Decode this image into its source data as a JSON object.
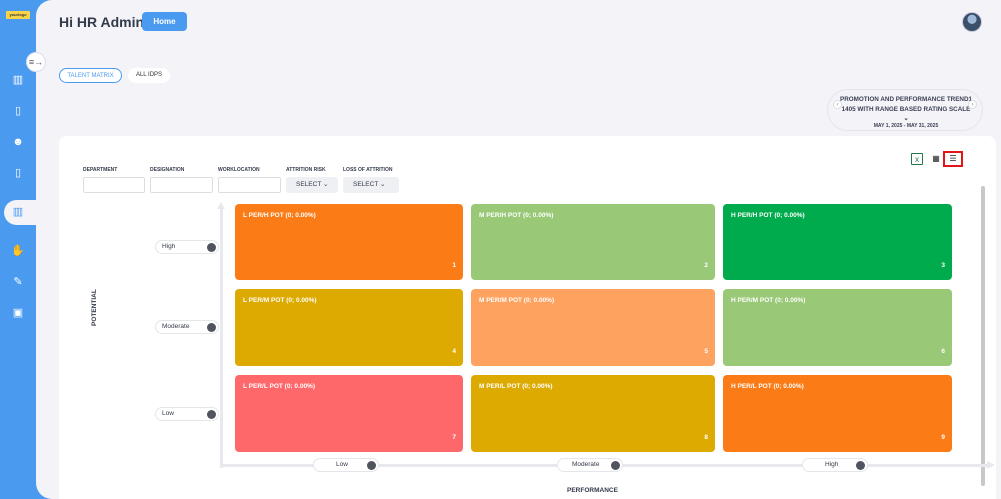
{
  "sidebar": {
    "logo_text": "yourlogo",
    "items": [
      {
        "icon": "bar-chart-icon",
        "glyph": "▥"
      },
      {
        "icon": "book-icon",
        "glyph": "▯"
      },
      {
        "icon": "users-icon",
        "glyph": "☻"
      },
      {
        "icon": "book-open-icon",
        "glyph": "▯"
      },
      {
        "icon": "analytics-icon",
        "glyph": "▥"
      },
      {
        "icon": "handshake-icon",
        "glyph": "✋"
      },
      {
        "icon": "document-edit-icon",
        "glyph": "✎"
      },
      {
        "icon": "calendar-icon",
        "glyph": "▣"
      }
    ],
    "collapse_glyph": "≡→"
  },
  "header": {
    "greeting": "Hi HR Admin",
    "home_label": "Home"
  },
  "tabs": [
    {
      "label": "TALENT MATRIX",
      "active": true
    },
    {
      "label": "ALL IDPS",
      "active": false
    }
  ],
  "period": {
    "title": "PROMOTION AND PERFORMANCE TREND1 1405 WITH RANGE BASED RATING SCALE ⌄",
    "range": "MAY 1, 2025 - MAY 31, 2025",
    "prev_glyph": "‹",
    "next_glyph": "›"
  },
  "filters": {
    "department_label": "DEPARTMENT",
    "designation_label": "DESIGNATION",
    "worklocation_label": "WORKLOCATION",
    "attrition_risk_label": "ATTRITION RISK",
    "attrition_risk_value": "SELECT ⌄",
    "loss_of_attrition_label": "LOSS OF ATTRITION",
    "loss_of_attrition_value": "SELECT ⌄"
  },
  "view_icons": {
    "excel_glyph": "x",
    "grid_glyph": "▦",
    "list_glyph": "☰"
  },
  "axes": {
    "y_title": "POTENTIAL",
    "x_title": "PERFORMANCE",
    "y_levels": [
      "High",
      "Moderate",
      "Low"
    ],
    "x_levels": [
      "Low",
      "Moderate",
      "High"
    ]
  },
  "matrix": {
    "cells": [
      {
        "label": "L PER/H POT (0; 0.00%)",
        "number": "1",
        "color": "#fb7b16"
      },
      {
        "label": "M PER/H POT (0; 0.00%)",
        "number": "2",
        "color": "#99c877"
      },
      {
        "label": "H PER/H POT (0; 0.00%)",
        "number": "3",
        "color": "#00ab4e"
      },
      {
        "label": "L PER/M POT (0; 0.00%)",
        "number": "4",
        "color": "#dcaa00"
      },
      {
        "label": "M PER/M POT (0; 0.00%)",
        "number": "5",
        "color": "#fea25f"
      },
      {
        "label": "H PER/M POT (0; 0.00%)",
        "number": "6",
        "color": "#99c877"
      },
      {
        "label": "L PER/L POT (0; 0.00%)",
        "number": "7",
        "color": "#ff686a"
      },
      {
        "label": "M PER/L POT (0; 0.00%)",
        "number": "8",
        "color": "#dcaa00"
      },
      {
        "label": "H PER/L POT (0; 0.00%)",
        "number": "9",
        "color": "#fb7b16"
      }
    ]
  }
}
